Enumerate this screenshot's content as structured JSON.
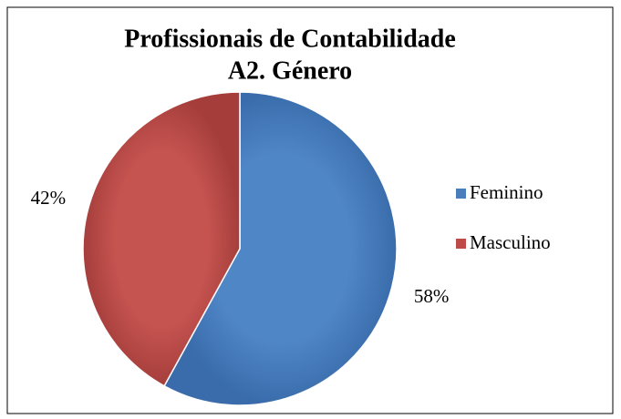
{
  "chart_data": {
    "type": "pie",
    "title": "Profissionais de Contabilidade",
    "subtitle": "A2. Género",
    "categories": [
      "Feminino",
      "Masculino"
    ],
    "values": [
      58,
      42
    ],
    "value_labels": [
      "58%",
      "42%"
    ],
    "colors": [
      "#4a7ebb",
      "#be4b48"
    ],
    "legend": "right"
  }
}
